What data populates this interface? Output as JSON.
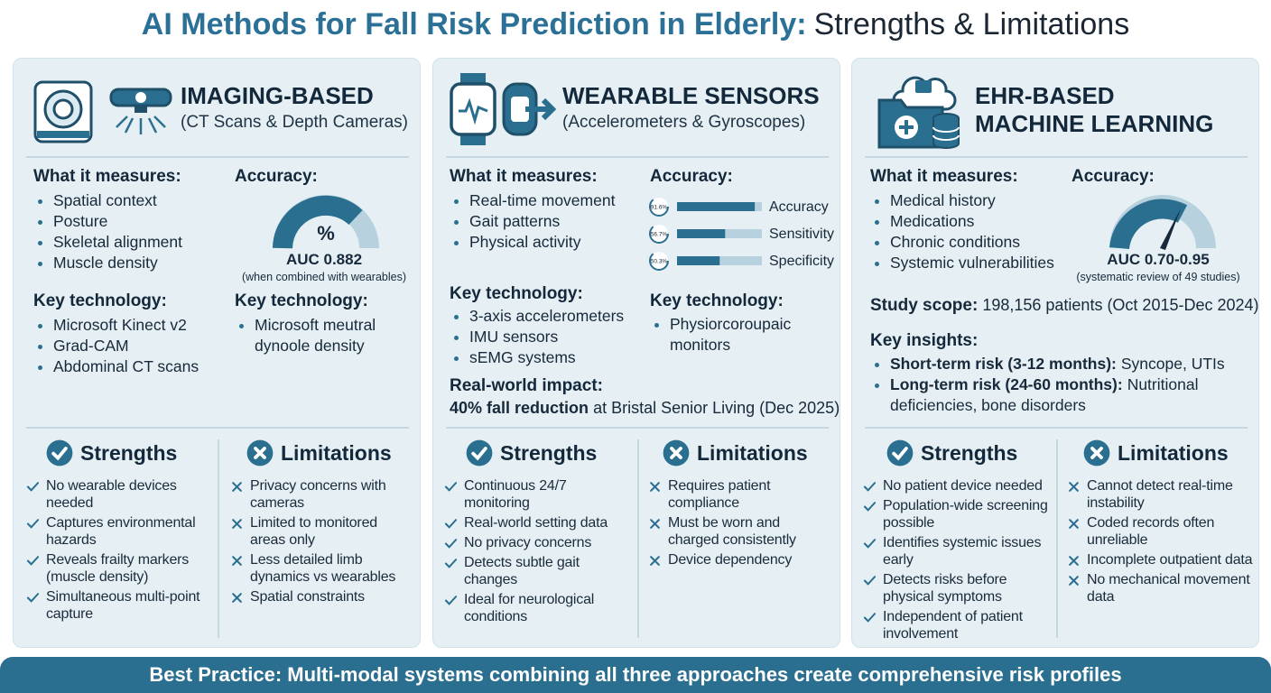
{
  "title": {
    "highlight": "AI Methods for Fall Risk Prediction in Elderly:",
    "rest": "Strengths & Limitations"
  },
  "panels": [
    {
      "title": "IMAGING-BASED",
      "subtitle": "(CT Scans & Depth Cameras)",
      "measures": {
        "heading": "What it measures:",
        "items": [
          "Spatial context",
          "Posture",
          "Skeletal alignment",
          "Muscle density"
        ]
      },
      "accuracy": {
        "heading": "Accuracy:",
        "symbol": "%",
        "label": "AUC 0.882",
        "note": "(when combined with wearables)"
      },
      "technology": {
        "heading": "Key technology:",
        "items": [
          "Microsoft Kinect v2",
          "Grad-CAM",
          "Abdominal CT scans"
        ]
      },
      "technology_2": {
        "heading": "Key technology:",
        "items": [
          "Microsoft meutral dynoole density"
        ]
      },
      "strengths": {
        "heading": "Strengths",
        "items": [
          "No wearable devices needed",
          "Captures environmental hazards",
          "Reveals frailty markers (muscle density)",
          "Simultaneous multi-point capture"
        ]
      },
      "limitations": {
        "heading": "Limitations",
        "items": [
          "Privacy concerns with cameras",
          "Limited to monitored areas only",
          "Less detailed limb dynamics vs wearables",
          "Spatial constraints"
        ]
      }
    },
    {
      "title": "WEARABLE SENSORS",
      "subtitle": "(Accelerometers & Gyroscopes)",
      "measures": {
        "heading": "What it measures:",
        "items": [
          "Real-time movement",
          "Gait patterns",
          "Physical activity"
        ]
      },
      "accuracy": {
        "heading": "Accuracy:",
        "metrics": [
          {
            "name": "Accuracy",
            "value": 91.6,
            "label": "91.6%"
          },
          {
            "name": "Sensitivity",
            "value": 56.7,
            "label": "56.7%"
          },
          {
            "name": "Specificity",
            "value": 50.3,
            "label": "50.3%"
          }
        ]
      },
      "technology": {
        "heading": "Key technology:",
        "items": [
          "3-axis accelerometers",
          "IMU sensors",
          "sEMG systems"
        ]
      },
      "technology_2": {
        "heading": "Key technology:",
        "items": [
          "Physiorcoroupaic monitors"
        ]
      },
      "impact": {
        "heading": "Real-world impact:",
        "bold": "40% fall reduction",
        "text": "at Bristal Senior Living (Dec 2025)"
      },
      "strengths": {
        "heading": "Strengths",
        "items": [
          "Continuous 24/7 monitoring",
          "Real-world setting data",
          "No privacy concerns",
          "Detects subtle gait changes",
          "Ideal for neurological conditions"
        ]
      },
      "limitations": {
        "heading": "Limitations",
        "items": [
          "Requires patient compliance",
          "Must be worn and charged consistently",
          "Device dependency"
        ]
      }
    },
    {
      "title": "EHR-BASED\nMACHINE LEARNING",
      "measures": {
        "heading": "What it measures:",
        "items": [
          "Medical history",
          "Medications",
          "Chronic conditions",
          "Systemic vulnerabilities"
        ]
      },
      "accuracy": {
        "heading": "Accuracy:",
        "label": "AUC 0.70-0.95",
        "note": "(systematic review of 49 studies)"
      },
      "scope": {
        "label": "Study scope:",
        "text": "198,156 patients (Oct 2015-Dec 2024)"
      },
      "insights": {
        "heading": "Key insights:",
        "items": [
          {
            "bold": "Short-term risk (3-12 months):",
            "text": "Syncope, UTIs"
          },
          {
            "bold": "Long-term risk (24-60 months):",
            "text": "Nutritional deficiencies, bone disorders"
          }
        ]
      },
      "strengths": {
        "heading": "Strengths",
        "items": [
          "No patient device needed",
          "Population-wide screening possible",
          "Identifies systemic issues early",
          "Detects risks before physical symptoms",
          "Independent of patient involvement"
        ]
      },
      "limitations": {
        "heading": "Limitations",
        "items": [
          "Cannot detect real-time instability",
          "Coded records often unreliable",
          "Incomplete outpatient data",
          "No mechanical movement data"
        ]
      }
    }
  ],
  "footer": "Best Practice: Multi-modal systems combining all three approaches create comprehensive risk profiles"
}
